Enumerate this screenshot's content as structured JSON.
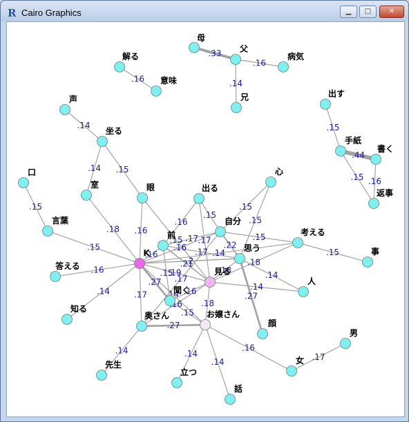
{
  "window": {
    "title": "Cairo Graphics",
    "icon": "R-icon",
    "controls": {
      "minimize": "▁",
      "maximize": "□",
      "close": "✕"
    }
  },
  "colors": {
    "edge": "#a3a3a3",
    "node_default": "#7fefef",
    "node_k": "#ee66ee",
    "node_miru": "#f5b4f5",
    "node_ojousan": "#f3e8f3",
    "weight_text": "#1a1aa0",
    "label_text": "#000000"
  },
  "graph": {
    "nodes": [
      {
        "id": "haha",
        "label": "母"
      },
      {
        "id": "chichi",
        "label": "父"
      },
      {
        "id": "byouki",
        "label": "病気"
      },
      {
        "id": "ani",
        "label": "兄"
      },
      {
        "id": "tokeru",
        "label": "解る"
      },
      {
        "id": "imi",
        "label": "意味"
      },
      {
        "id": "koe",
        "label": "声"
      },
      {
        "id": "suwaru",
        "label": "坐る"
      },
      {
        "id": "dasu",
        "label": "出す"
      },
      {
        "id": "tegami",
        "label": "手紙"
      },
      {
        "id": "kaku",
        "label": "書く"
      },
      {
        "id": "henji",
        "label": "返事"
      },
      {
        "id": "kuchi",
        "label": "口"
      },
      {
        "id": "shitsu",
        "label": "室"
      },
      {
        "id": "me",
        "label": "眼"
      },
      {
        "id": "deru",
        "label": "出る"
      },
      {
        "id": "kokoro",
        "label": "心"
      },
      {
        "id": "kotoba",
        "label": "言葉"
      },
      {
        "id": "mae",
        "label": "前"
      },
      {
        "id": "jibun",
        "label": "自分"
      },
      {
        "id": "kangaeru",
        "label": "考える"
      },
      {
        "id": "koto",
        "label": "事"
      },
      {
        "id": "K",
        "label": "K"
      },
      {
        "id": "omou",
        "label": "思う"
      },
      {
        "id": "kotaeru",
        "label": "答える"
      },
      {
        "id": "miru",
        "label": "見る"
      },
      {
        "id": "hito",
        "label": "人"
      },
      {
        "id": "shiru",
        "label": "知る"
      },
      {
        "id": "kiku",
        "label": "聞く"
      },
      {
        "id": "okusan",
        "label": "奥さん"
      },
      {
        "id": "ojousan",
        "label": "お嬢さん"
      },
      {
        "id": "kao",
        "label": "顔"
      },
      {
        "id": "otoko",
        "label": "男"
      },
      {
        "id": "sensei",
        "label": "先生"
      },
      {
        "id": "onna",
        "label": "女"
      },
      {
        "id": "tatsu",
        "label": "立つ"
      },
      {
        "id": "hanashi",
        "label": "話"
      }
    ],
    "edges": [
      {
        "source": "haha",
        "target": "chichi",
        "weight": ".33"
      },
      {
        "source": "chichi",
        "target": "byouki",
        "weight": ".16"
      },
      {
        "source": "chichi",
        "target": "ani",
        "weight": ".14"
      },
      {
        "source": "tokeru",
        "target": "imi",
        "weight": ".16"
      },
      {
        "source": "koe",
        "target": "suwaru",
        "weight": ".14"
      },
      {
        "source": "suwaru",
        "target": "shitsu",
        "weight": ".14"
      },
      {
        "source": "suwaru",
        "target": "me",
        "weight": ".15"
      },
      {
        "source": "dasu",
        "target": "tegami",
        "weight": ".15"
      },
      {
        "source": "tegami",
        "target": "kaku",
        "weight": ".44"
      },
      {
        "source": "kaku",
        "target": "henji",
        "weight": ".16"
      },
      {
        "source": "tegami",
        "target": "henji",
        "weight": ".15"
      },
      {
        "source": "kuchi",
        "target": "kotoba",
        "weight": ".15"
      },
      {
        "source": "kotoba",
        "target": "K",
        "weight": ".15"
      },
      {
        "source": "shitsu",
        "target": "K",
        "weight": ".18"
      },
      {
        "source": "me",
        "target": "K",
        "weight": ".16"
      },
      {
        "source": "me",
        "target": "miru",
        "weight": ".15"
      },
      {
        "source": "deru",
        "target": "mae",
        "weight": ".16"
      },
      {
        "source": "deru",
        "target": "jibun",
        "weight": ".15"
      },
      {
        "source": "deru",
        "target": "miru",
        "weight": ".17"
      },
      {
        "source": "kokoro",
        "target": "jibun",
        "weight": ".15"
      },
      {
        "source": "kokoro",
        "target": "omou",
        "weight": ".15"
      },
      {
        "source": "mae",
        "target": "K",
        "weight": ".16"
      },
      {
        "source": "mae",
        "target": "jibun",
        "weight": ".17"
      },
      {
        "source": "mae",
        "target": "omou",
        "weight": ".17"
      },
      {
        "source": "mae",
        "target": "miru",
        "weight": ".21"
      },
      {
        "source": "mae",
        "target": "kiku",
        "weight": ".15"
      },
      {
        "source": "jibun",
        "target": "K",
        "weight": ".16"
      },
      {
        "source": "jibun",
        "target": "kangaeru",
        "weight": ".15"
      },
      {
        "source": "jibun",
        "target": "omou",
        "weight": ".22"
      },
      {
        "source": "kangaeru",
        "target": "koto",
        "weight": ".15"
      },
      {
        "source": "kangaeru",
        "target": "K",
        "weight": ".14"
      },
      {
        "source": "omou",
        "target": "K",
        "weight": ".2"
      },
      {
        "source": "omou",
        "target": "miru",
        "weight": ".18"
      },
      {
        "source": "omou",
        "target": "hito",
        "weight": ".14"
      },
      {
        "source": "omou",
        "target": "kao",
        "weight": ".27"
      },
      {
        "source": "K",
        "target": "kotaeru",
        "weight": ".16"
      },
      {
        "source": "K",
        "target": "shiru",
        "weight": ".14"
      },
      {
        "source": "K",
        "target": "miru",
        "weight": ".19"
      },
      {
        "source": "K",
        "target": "kiku",
        "weight": ".27"
      },
      {
        "source": "K",
        "target": "okusan",
        "weight": ".17"
      },
      {
        "source": "K",
        "target": "ojousan",
        "weight": ".14"
      },
      {
        "source": "kangaeru",
        "target": "miru",
        "weight": ".18"
      },
      {
        "source": "jibun",
        "target": "okusan",
        "weight": ".17"
      },
      {
        "source": "miru",
        "target": "hito",
        "weight": ".14"
      },
      {
        "source": "miru",
        "target": "kiku",
        "weight": ".16"
      },
      {
        "source": "miru",
        "target": "okusan",
        "weight": ".16"
      },
      {
        "source": "miru",
        "target": "ojousan",
        "weight": ".18"
      },
      {
        "source": "kiku",
        "target": "ojousan",
        "weight": ".15"
      },
      {
        "source": "okusan",
        "target": "ojousan",
        "weight": ".27"
      },
      {
        "source": "okusan",
        "target": "sensei",
        "weight": ".14"
      },
      {
        "source": "ojousan",
        "target": "onna",
        "weight": ".16"
      },
      {
        "source": "ojousan",
        "target": "tatsu",
        "weight": ".14"
      },
      {
        "source": "ojousan",
        "target": "hanashi",
        "weight": ".14"
      },
      {
        "source": "onna",
        "target": "otoko",
        "weight": ".17"
      }
    ]
  }
}
